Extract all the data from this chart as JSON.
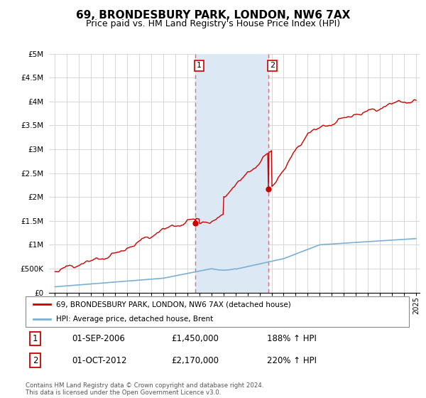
{
  "title": "69, BRONDESBURY PARK, LONDON, NW6 7AX",
  "subtitle": "Price paid vs. HM Land Registry's House Price Index (HPI)",
  "title_fontsize": 11,
  "subtitle_fontsize": 9,
  "ylim": [
    0,
    5000000
  ],
  "yticks": [
    0,
    500000,
    1000000,
    1500000,
    2000000,
    2500000,
    3000000,
    3500000,
    4000000,
    4500000,
    5000000
  ],
  "ytick_labels": [
    "£0",
    "£500K",
    "£1M",
    "£1.5M",
    "£2M",
    "£2.5M",
    "£3M",
    "£3.5M",
    "£4M",
    "£4.5M",
    "£5M"
  ],
  "sale1_date": 2006.67,
  "sale1_price": 1450000,
  "sale2_date": 2012.75,
  "sale2_price": 2170000,
  "shaded_color": "#dce9f5",
  "red_line_color": "#cc0000",
  "blue_line_color": "#7bafd4",
  "marker_color": "#cc0000",
  "dashed_line_color": "#e07070",
  "legend_label_red": "69, BRONDESBURY PARK, LONDON, NW6 7AX (detached house)",
  "legend_label_blue": "HPI: Average price, detached house, Brent",
  "note_label1": "1",
  "note_label2": "2",
  "note1_date": "01-SEP-2006",
  "note1_price": "£1,450,000",
  "note1_hpi": "188% ↑ HPI",
  "note2_date": "01-OCT-2012",
  "note2_price": "£2,170,000",
  "note2_hpi": "220% ↑ HPI",
  "footer": "Contains HM Land Registry data © Crown copyright and database right 2024.\nThis data is licensed under the Open Government Licence v3.0.",
  "xstart": 1995,
  "xend": 2025
}
